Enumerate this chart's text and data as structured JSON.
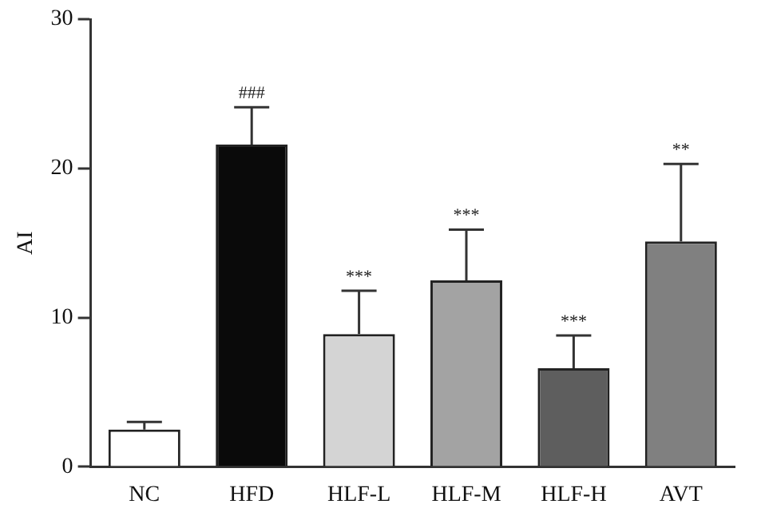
{
  "chart_data": {
    "type": "bar",
    "ylabel": "AI",
    "categories": [
      "NC",
      "HFD",
      "HLF-L",
      "HLF-M",
      "HLF-H",
      "AVT"
    ],
    "values": [
      2.5,
      21.6,
      8.9,
      12.5,
      6.6,
      15.1
    ],
    "colors": [
      "#ffffff",
      "#0a0a0a",
      "#d4d4d4",
      "#a3a3a3",
      "#5e5e5e",
      "#808080"
    ],
    "errors": [
      [
        2.5,
        3.0
      ],
      [
        21.6,
        24.1
      ],
      [
        8.9,
        11.8
      ],
      [
        12.5,
        15.9
      ],
      [
        6.6,
        8.8
      ],
      [
        15.1,
        20.3
      ]
    ],
    "ylim": [
      0,
      30
    ],
    "yticks": [
      0,
      10,
      20,
      30
    ],
    "grid": false,
    "legend": false,
    "annotations": [
      {
        "text": "###",
        "x": "HFD",
        "y": 24.1
      },
      {
        "text": "***",
        "x": "HLF-L",
        "y": 11.8
      },
      {
        "text": "***",
        "x": "HLF-M",
        "y": 15.9
      },
      {
        "text": "***",
        "x": "HLF-H",
        "y": 8.8
      },
      {
        "text": "**",
        "x": "AVT",
        "y": 20.3
      }
    ]
  }
}
